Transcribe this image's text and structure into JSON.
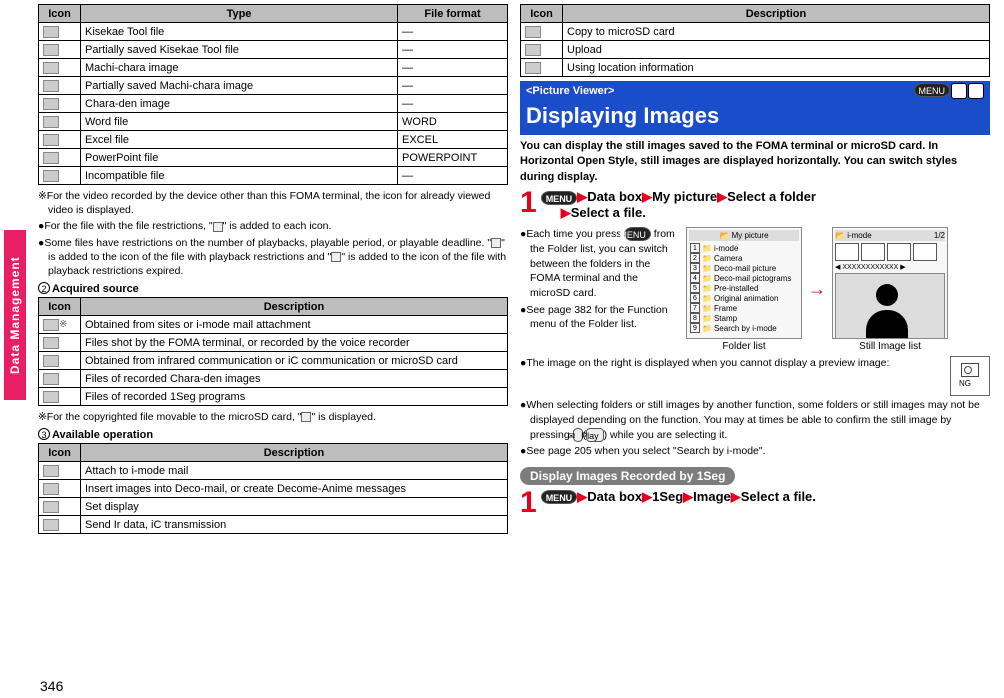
{
  "page_number": "346",
  "side_tab": "Data Management",
  "table_files": {
    "headers": [
      "Icon",
      "Type",
      "File format"
    ],
    "rows": [
      {
        "icon": "kisekae",
        "type": "Kisekae Tool file",
        "format": "—"
      },
      {
        "icon": "kisekae-p",
        "type": "Partially saved Kisekae Tool file",
        "format": "—"
      },
      {
        "icon": "machi",
        "type": "Machi-chara image",
        "format": "—"
      },
      {
        "icon": "machi-p",
        "type": "Partially saved Machi-chara image",
        "format": "—"
      },
      {
        "icon": "chara",
        "type": "Chara-den image",
        "format": "—"
      },
      {
        "icon": "word",
        "type": "Word file",
        "format": "WORD"
      },
      {
        "icon": "excel",
        "type": "Excel file",
        "format": "EXCEL"
      },
      {
        "icon": "ppt",
        "type": "PowerPoint file",
        "format": "POWERPOINT"
      },
      {
        "icon": "incomp",
        "type": "Incompatible file",
        "format": "—"
      }
    ]
  },
  "notes1": {
    "n1": "※For the video recorded by the device other than this FOMA terminal, the icon for already viewed video is displayed.",
    "n2_a": "●For the file with the file restrictions, \"",
    "n2_b": "\" is added to each icon.",
    "n3": "●Some files have restrictions on the number of playbacks, playable period, or playable deadline. \"",
    "n3_mid": "\" is added to the icon of the file with playback restrictions and \"",
    "n3_end": "\" is added to the icon of the file with playback restrictions expired."
  },
  "sub_acquired_num": "2",
  "sub_acquired": "Acquired source",
  "table_sources": {
    "headers": [
      "Icon",
      "Description"
    ],
    "rows": [
      {
        "icon": "imode",
        "star": "※",
        "desc": "Obtained from sites or i-mode mail attachment"
      },
      {
        "icon": "foma",
        "desc": "Files shot by the FOMA terminal, or recorded by the voice recorder"
      },
      {
        "icon": "ir",
        "desc": "Obtained from infrared communication or iC communication or microSD card"
      },
      {
        "icon": "chara2",
        "desc": "Files of recorded Chara-den images"
      },
      {
        "icon": "1seg",
        "desc": "Files of recorded 1Seg programs"
      }
    ]
  },
  "note_copyright_a": "※For the copyrighted file movable to the microSD card, \"",
  "note_copyright_b": "\" is displayed.",
  "sub_avail_num": "3",
  "sub_avail": "Available operation",
  "table_ops": {
    "headers": [
      "Icon",
      "Description"
    ],
    "rows": [
      {
        "icon": "attach",
        "desc": "Attach to i-mode mail"
      },
      {
        "icon": "deco",
        "desc": "Insert images into Deco-mail, or create Decome-Anime messages"
      },
      {
        "icon": "display",
        "desc": "Set display"
      },
      {
        "icon": "ir2",
        "desc": "Send Ir data, iC transmission"
      }
    ]
  },
  "table_ops2": {
    "headers": [
      "Icon",
      "Description"
    ],
    "rows": [
      {
        "icon": "copy",
        "desc": "Copy to microSD card"
      },
      {
        "icon": "upload",
        "desc": "Upload"
      },
      {
        "icon": "loc",
        "desc": "Using location information"
      }
    ]
  },
  "picture_viewer_label": "<Picture Viewer>",
  "shortcut_menu": "MENU",
  "shortcut_4": "4",
  "shortcut_6": "6",
  "picture_viewer_title": "Displaying Images",
  "pv_intro": "You can display the still images saved to the FOMA terminal or microSD card. In Horizontal Open Style, still images are displayed horizontally. You can switch styles during display.",
  "step1_num": "1",
  "step1_menu": "MENU",
  "step1_a": "Data box",
  "step1_b": "My picture",
  "step1_c": "Select a folder",
  "step1_d": "Select a file.",
  "step1_notes": {
    "a_1": "●Each time you press ",
    "a_menu": "MENU",
    "a_2": " from the Folder list, you can switch between the folders in the FOMA terminal and the microSD card.",
    "b": "●See page 382 for the Function menu of the Folder list."
  },
  "folder_title": "My picture",
  "folder_items": [
    "i-mode",
    "Camera",
    "Deco-mail picture",
    "Deco-mail pictograms",
    "Pre-installed",
    "Original animation",
    "Frame",
    "Stamp",
    "Search by i-mode"
  ],
  "folder_caption": "Folder list",
  "imagelist_title": "i-mode",
  "imagelist_page": "1/2",
  "imagelist_label": "XXXXXXXXXXXX",
  "imagelist_caption": "Still Image list",
  "below_notes": {
    "a": "●The image on the right is displayed when you cannot display a preview image:",
    "ng": "NG",
    "b1": "●When selecting folders or still images by another function, some folders or still images may not be displayed depending on the function. You may at times be able to confirm the still image by pressing ",
    "b_key_mail": "✉",
    "b_key_play": "Play",
    "b2": " while you are selecting it.",
    "c": "●See page 205 when you select \"Search by i-mode\"."
  },
  "subbar_1seg": "Display Images Recorded by 1Seg",
  "step2_num": "1",
  "step2_menu": "MENU",
  "step2_a": "Data box",
  "step2_b": "1Seg",
  "step2_c": "Image",
  "step2_d": "Select a file."
}
